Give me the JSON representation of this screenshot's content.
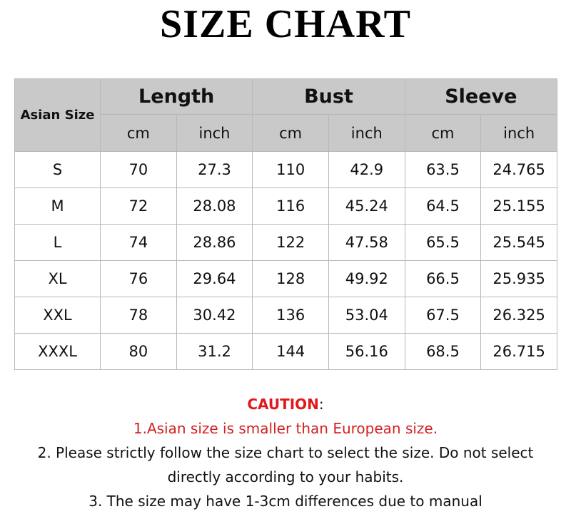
{
  "title": "SIZE CHART",
  "table": {
    "size_header": "Asian Size",
    "groups": [
      "Length",
      "Bust",
      "Sleeve"
    ],
    "units": [
      "cm",
      "inch",
      "cm",
      "inch",
      "cm",
      "inch"
    ],
    "rows": [
      [
        "S",
        "70",
        "27.3",
        "110",
        "42.9",
        "63.5",
        "24.765"
      ],
      [
        "M",
        "72",
        "28.08",
        "116",
        "45.24",
        "64.5",
        "25.155"
      ],
      [
        "L",
        "74",
        "28.86",
        "122",
        "47.58",
        "65.5",
        "25.545"
      ],
      [
        "XL",
        "76",
        "29.64",
        "128",
        "49.92",
        "66.5",
        "25.935"
      ],
      [
        "XXL",
        "78",
        "30.42",
        "136",
        "53.04",
        "67.5",
        "26.325"
      ],
      [
        "XXXL",
        "80",
        "31.2",
        "144",
        "56.16",
        "68.5",
        "26.715"
      ]
    ]
  },
  "notes": {
    "caution_label": "CAUTION",
    "caution_colon": ":",
    "line1": "1.Asian size is smaller than European size.",
    "line2": "2. Please strictly follow the size chart to select the size. Do not select",
    "line3": "directly according to your habits.",
    "line4": "3. The size may have 1-3cm differences due to manual"
  },
  "colors": {
    "header_bg": "#c9c9c9",
    "caution": "#e0191e",
    "note_red": "#d42020"
  }
}
